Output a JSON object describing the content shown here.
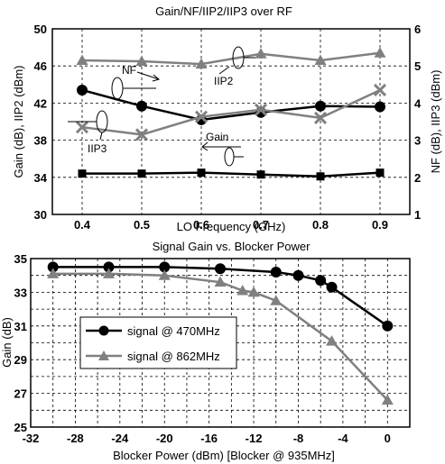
{
  "chart_data": [
    {
      "type": "line",
      "title": "Gain/NF/IIP2/IIP3 over RF",
      "xlabel": "LO Frequency (GHz)",
      "ylabel_left": "Gain (dB), IIP2 (dBm)",
      "ylabel_right": "NF (dB), IIP3 (dBm)",
      "xlim": [
        0.35,
        0.95
      ],
      "ylim_left": [
        30,
        50
      ],
      "ylim_right": [
        1,
        6
      ],
      "x_ticks": [
        "0.4",
        "0.5",
        "0.6",
        "0.7",
        "0.8",
        "0.9"
      ],
      "y_ticks_left": [
        "30",
        "34",
        "38",
        "42",
        "46",
        "50"
      ],
      "y_ticks_right": [
        "1",
        "2",
        "3",
        "4",
        "5",
        "6"
      ],
      "grid": true,
      "x": [
        0.4,
        0.5,
        0.6,
        0.7,
        0.8,
        0.9
      ],
      "series": [
        {
          "name": "IIP2",
          "axis": "left",
          "marker": "triangle",
          "color": "#808080",
          "values": [
            46.6,
            46.5,
            46.2,
            47.3,
            46.6,
            47.4
          ]
        },
        {
          "name": "NF",
          "axis": "right",
          "marker": "circle",
          "color": "#000000",
          "values": [
            4.35,
            3.92,
            3.55,
            3.75,
            3.92,
            3.9
          ]
        },
        {
          "name": "IIP3",
          "axis": "right",
          "marker": "x",
          "color": "#808080",
          "values": [
            3.35,
            3.15,
            3.63,
            3.82,
            3.6,
            4.35
          ]
        },
        {
          "name": "Gain",
          "axis": "left",
          "marker": "square",
          "color": "#000000",
          "values": [
            34.4,
            34.4,
            34.5,
            34.3,
            34.1,
            34.5
          ]
        }
      ],
      "annotations": [
        "NF",
        "IIP2",
        "IIP3",
        "Gain"
      ]
    },
    {
      "type": "line",
      "title": "Signal Gain vs. Blocker Power",
      "xlabel": "Blocker Power (dBm)  [Blocker @ 935MHz]",
      "ylabel": "Gain (dB)",
      "xlim": [
        -32,
        2
      ],
      "ylim": [
        25,
        35
      ],
      "x_ticks": [
        "-32",
        "-28",
        "-24",
        "-20",
        "-16",
        "-12",
        "-8",
        "-4",
        "0"
      ],
      "y_ticks": [
        "25",
        "27",
        "29",
        "31",
        "33",
        "35"
      ],
      "grid": true,
      "legend": "center-left",
      "series": [
        {
          "name": "signal @ 470MHz",
          "marker": "circle",
          "color": "#000000",
          "x": [
            -30,
            -25,
            -20,
            -15,
            -10,
            -8,
            -6,
            -5,
            0
          ],
          "values": [
            34.5,
            34.5,
            34.5,
            34.4,
            34.2,
            34.0,
            33.7,
            33.3,
            31.0
          ]
        },
        {
          "name": "signal @ 862MHz",
          "marker": "triangle",
          "color": "#808080",
          "x": [
            -30,
            -25,
            -20,
            -15,
            -13,
            -12,
            -10,
            -5,
            0
          ],
          "values": [
            34.1,
            34.1,
            34.0,
            33.6,
            33.1,
            33.0,
            32.5,
            30.1,
            26.6
          ]
        }
      ]
    }
  ]
}
